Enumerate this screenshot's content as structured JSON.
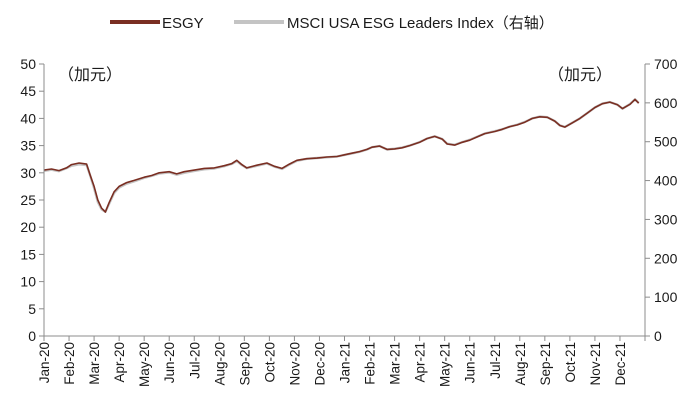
{
  "chart_data": {
    "type": "line",
    "title": "",
    "legend_position": "top",
    "left_unit": "（加元）",
    "right_unit": "（加元）",
    "left_axis": {
      "ticks": [
        0,
        5,
        10,
        15,
        20,
        25,
        30,
        35,
        40,
        45,
        50
      ],
      "ylim": [
        0,
        50
      ]
    },
    "right_axis": {
      "ticks": [
        0,
        100,
        200,
        300,
        400,
        500,
        600,
        700
      ],
      "ylim": [
        0,
        700
      ]
    },
    "x_labels": [
      "Jan-20",
      "Feb-20",
      "Mar-20",
      "Apr-20",
      "May-20",
      "Jun-20",
      "Jul-20",
      "Aug-20",
      "Sep-20",
      "Oct-20",
      "Nov-20",
      "Dec-20",
      "Jan-21",
      "Feb-21",
      "Mar-21",
      "Apr-21",
      "May-21",
      "Jun-21",
      "Jul-21",
      "Aug-21",
      "Sep-21",
      "Oct-21",
      "Nov-21",
      "Dec-21"
    ],
    "series": [
      {
        "name": "ESGY",
        "axis": "left",
        "color": "#7a2e22",
        "points": [
          [
            0,
            30.5
          ],
          [
            0.3,
            30.7
          ],
          [
            0.6,
            30.4
          ],
          [
            0.9,
            30.9
          ],
          [
            1.1,
            31.5
          ],
          [
            1.4,
            31.8
          ],
          [
            1.7,
            31.6
          ],
          [
            1.85,
            29.5
          ],
          [
            2.0,
            27.5
          ],
          [
            2.15,
            25.0
          ],
          [
            2.3,
            23.5
          ],
          [
            2.45,
            22.8
          ],
          [
            2.6,
            24.5
          ],
          [
            2.8,
            26.5
          ],
          [
            3.0,
            27.5
          ],
          [
            3.3,
            28.2
          ],
          [
            3.6,
            28.6
          ],
          [
            4.0,
            29.2
          ],
          [
            4.3,
            29.5
          ],
          [
            4.6,
            30.0
          ],
          [
            5.0,
            30.2
          ],
          [
            5.3,
            29.8
          ],
          [
            5.6,
            30.2
          ],
          [
            6.0,
            30.5
          ],
          [
            6.4,
            30.8
          ],
          [
            6.8,
            30.9
          ],
          [
            7.2,
            31.3
          ],
          [
            7.5,
            31.7
          ],
          [
            7.7,
            32.3
          ],
          [
            7.9,
            31.5
          ],
          [
            8.1,
            30.9
          ],
          [
            8.5,
            31.4
          ],
          [
            8.9,
            31.8
          ],
          [
            9.2,
            31.2
          ],
          [
            9.5,
            30.8
          ],
          [
            9.8,
            31.6
          ],
          [
            10.1,
            32.3
          ],
          [
            10.5,
            32.6
          ],
          [
            10.9,
            32.7
          ],
          [
            11.3,
            32.9
          ],
          [
            11.7,
            33.0
          ],
          [
            12.0,
            33.3
          ],
          [
            12.3,
            33.6
          ],
          [
            12.6,
            33.9
          ],
          [
            12.9,
            34.3
          ],
          [
            13.1,
            34.7
          ],
          [
            13.4,
            34.9
          ],
          [
            13.7,
            34.3
          ],
          [
            14.0,
            34.4
          ],
          [
            14.3,
            34.6
          ],
          [
            14.6,
            35.0
          ],
          [
            15.0,
            35.6
          ],
          [
            15.3,
            36.3
          ],
          [
            15.6,
            36.7
          ],
          [
            15.9,
            36.2
          ],
          [
            16.1,
            35.3
          ],
          [
            16.4,
            35.1
          ],
          [
            16.7,
            35.6
          ],
          [
            17.0,
            36.0
          ],
          [
            17.3,
            36.6
          ],
          [
            17.6,
            37.2
          ],
          [
            18.0,
            37.6
          ],
          [
            18.3,
            38.0
          ],
          [
            18.6,
            38.5
          ],
          [
            18.9,
            38.8
          ],
          [
            19.2,
            39.3
          ],
          [
            19.5,
            40.0
          ],
          [
            19.8,
            40.3
          ],
          [
            20.1,
            40.2
          ],
          [
            20.4,
            39.5
          ],
          [
            20.6,
            38.7
          ],
          [
            20.8,
            38.4
          ],
          [
            21.1,
            39.2
          ],
          [
            21.4,
            40.0
          ],
          [
            21.7,
            41.0
          ],
          [
            22.0,
            42.0
          ],
          [
            22.3,
            42.7
          ],
          [
            22.6,
            43.0
          ],
          [
            22.9,
            42.5
          ],
          [
            23.1,
            41.8
          ],
          [
            23.4,
            42.6
          ],
          [
            23.6,
            43.5
          ],
          [
            23.75,
            42.8
          ]
        ]
      },
      {
        "name": "MSCI USA ESG Leaders Index（右轴）",
        "axis": "right",
        "color": "#c4c4c4",
        "points": [
          [
            0,
            425
          ],
          [
            0.3,
            428
          ],
          [
            0.6,
            424
          ],
          [
            0.9,
            432
          ],
          [
            1.1,
            438
          ],
          [
            1.4,
            442
          ],
          [
            1.7,
            440
          ],
          [
            1.85,
            412
          ],
          [
            2.0,
            380
          ],
          [
            2.15,
            345
          ],
          [
            2.3,
            326
          ],
          [
            2.45,
            320
          ],
          [
            2.6,
            340
          ],
          [
            2.8,
            368
          ],
          [
            3.0,
            382
          ],
          [
            3.3,
            392
          ],
          [
            3.6,
            398
          ],
          [
            4.0,
            407
          ],
          [
            4.3,
            412
          ],
          [
            4.6,
            418
          ],
          [
            5.0,
            421
          ],
          [
            5.3,
            415
          ],
          [
            5.6,
            420
          ],
          [
            6.0,
            425
          ],
          [
            6.4,
            429
          ],
          [
            6.8,
            431
          ],
          [
            7.2,
            437
          ],
          [
            7.5,
            443
          ],
          [
            7.7,
            450
          ],
          [
            7.9,
            440
          ],
          [
            8.1,
            432
          ],
          [
            8.5,
            438
          ],
          [
            8.9,
            444
          ],
          [
            9.2,
            436
          ],
          [
            9.5,
            430
          ],
          [
            9.8,
            441
          ],
          [
            10.1,
            451
          ],
          [
            10.5,
            456
          ],
          [
            10.9,
            458
          ],
          [
            11.3,
            460
          ],
          [
            11.7,
            462
          ],
          [
            12.0,
            466
          ],
          [
            12.3,
            470
          ],
          [
            12.6,
            474
          ],
          [
            12.9,
            480
          ],
          [
            13.1,
            486
          ],
          [
            13.4,
            489
          ],
          [
            13.7,
            480
          ],
          [
            14.0,
            482
          ],
          [
            14.3,
            485
          ],
          [
            14.6,
            490
          ],
          [
            15.0,
            499
          ],
          [
            15.3,
            508
          ],
          [
            15.6,
            514
          ],
          [
            15.9,
            507
          ],
          [
            16.1,
            495
          ],
          [
            16.4,
            492
          ],
          [
            16.7,
            499
          ],
          [
            17.0,
            505
          ],
          [
            17.3,
            513
          ],
          [
            17.6,
            521
          ],
          [
            18.0,
            527
          ],
          [
            18.3,
            532
          ],
          [
            18.6,
            539
          ],
          [
            18.9,
            544
          ],
          [
            19.2,
            551
          ],
          [
            19.5,
            560
          ],
          [
            19.8,
            565
          ],
          [
            20.1,
            563
          ],
          [
            20.4,
            553
          ],
          [
            20.6,
            542
          ],
          [
            20.8,
            538
          ],
          [
            21.1,
            549
          ],
          [
            21.4,
            560
          ],
          [
            21.7,
            574
          ],
          [
            22.0,
            588
          ],
          [
            22.3,
            598
          ],
          [
            22.6,
            602
          ],
          [
            22.9,
            595
          ],
          [
            23.1,
            585
          ],
          [
            23.4,
            597
          ],
          [
            23.6,
            609
          ],
          [
            23.75,
            600
          ]
        ]
      }
    ]
  }
}
